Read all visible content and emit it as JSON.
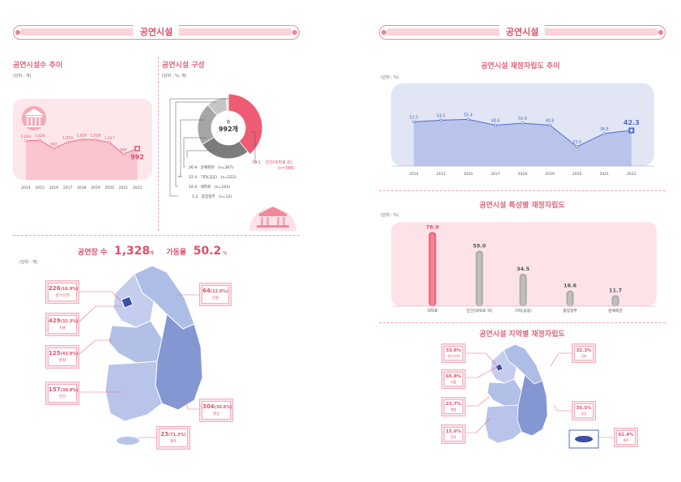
{
  "left_panel": {
    "header": "공연시설",
    "trend_title": "공연시설수 추이",
    "trend_unit": "(단위 : 개)",
    "composition_title": "공연시설 구성",
    "composition_unit": "(단위 : %, 개)",
    "donut_label": "총",
    "donut_total": "992개",
    "composition_items": [
      {
        "pct": "39.1",
        "name": "민간(대학로 외)",
        "count": "(n=388)"
      },
      {
        "pct": "26.9",
        "name": "문예회관",
        "count": "(n=267)"
      },
      {
        "pct": "22.4",
        "name": "기타(공공)",
        "count": "(n=222)"
      },
      {
        "pct": "10.4",
        "name": "대학로",
        "count": "(n=103)"
      },
      {
        "pct": "1.2",
        "name": "중앙정부",
        "count": "(n=12)"
      }
    ],
    "stage_label": "공연장 수",
    "stage_value": "1,328",
    "stage_suffix": "개",
    "util_label": "가동율",
    "util_value": "50.2",
    "util_suffix": "%",
    "map_unit": "(단위 : 개)",
    "regions": [
      {
        "value": "226",
        "pct": "(16.9%)",
        "name": "경기/인천"
      },
      {
        "value": "429",
        "pct": "(32.3%)",
        "name": "서울"
      },
      {
        "value": "125",
        "pct": "(43.9%)",
        "name": "충청"
      },
      {
        "value": "157",
        "pct": "(39.9%)",
        "name": "전라"
      },
      {
        "value": "64",
        "pct": "(12.0%)",
        "name": "강원"
      },
      {
        "value": "304",
        "pct": "(30.6%)",
        "name": "경상"
      },
      {
        "value": "23",
        "pct": "(71.3%)",
        "name": "제주"
      }
    ]
  },
  "right_panel": {
    "header": "공연시설",
    "fiscal_trend_title": "공연시설 재정자립도 추이",
    "fiscal_unit": "(단위 : %)",
    "type_title": "공연시설 특성별 재정자립도",
    "type_unit": "(단위 : %)",
    "region_title": "공연시설 지역별 재정자립도",
    "regions": [
      {
        "value": "33.8%",
        "name": "경기/인천"
      },
      {
        "value": "65.8%",
        "name": "서울"
      },
      {
        "value": "23.7%",
        "name": "충청"
      },
      {
        "value": "15.6%",
        "name": "전라"
      },
      {
        "value": "32.3%",
        "name": "강원"
      },
      {
        "value": "35.5%",
        "name": "경상"
      },
      {
        "value": "62.4%",
        "name": "제주"
      }
    ]
  },
  "chart_data": [
    {
      "type": "area",
      "title": "공연시설수 추이",
      "x": [
        "2014",
        "2015",
        "2016",
        "2017",
        "2018",
        "2019",
        "2020",
        "2021",
        "2022"
      ],
      "values": [
        1024,
        1026,
        992,
        1018,
        1029,
        1028,
        1017,
        969,
        992
      ],
      "labels": [
        "1,024",
        "1,026",
        "992",
        "1,018",
        "1,029",
        "1,028",
        "1,017",
        "969",
        "992"
      ],
      "ylim": [
        0,
        1100
      ],
      "color": "#fbd3da",
      "line_color": "#e87088"
    },
    {
      "type": "pie",
      "title": "공연시설 구성",
      "categories": [
        "민간(대학로 외)",
        "문예회관",
        "기타(공공)",
        "대학로",
        "중앙정부"
      ],
      "values": [
        39.1,
        26.9,
        22.4,
        10.4,
        1.2
      ],
      "colors": [
        "#ee5c74",
        "#7c7c7c",
        "#a6a6a6",
        "#c6c6c6",
        "#e0e0e0"
      ]
    },
    {
      "type": "line",
      "title": "공연시설 재정자립도 추이",
      "x": [
        "2014",
        "2015",
        "2016",
        "2017",
        "2018",
        "2019",
        "2020",
        "2021",
        "2022"
      ],
      "values": [
        52.5,
        54.5,
        55.4,
        48.6,
        50.9,
        48.6,
        23.0,
        38.6,
        42.3
      ],
      "ylim": [
        0,
        80
      ],
      "color": "#4f6ec4"
    },
    {
      "type": "bar",
      "title": "공연시설 특성별 재정자립도",
      "categories": [
        "대학로",
        "민간(대학로 외)",
        "기타(공공)",
        "중앙정부",
        "문예회관"
      ],
      "values": [
        78.9,
        59.0,
        34.5,
        16.6,
        11.7
      ],
      "labels": [
        "78.9",
        "59.0",
        "34.5",
        "16.6",
        "11.7"
      ],
      "ylim": [
        0,
        85
      ],
      "colors": [
        "#ee5c74",
        "#aaaaaa",
        "#aaaaaa",
        "#aaaaaa",
        "#aaaaaa"
      ]
    }
  ]
}
